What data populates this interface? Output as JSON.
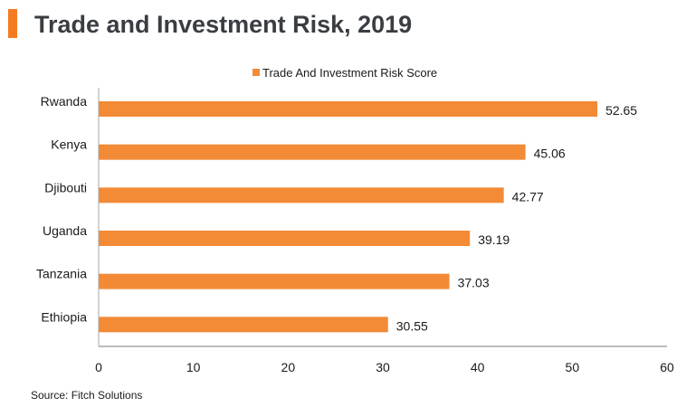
{
  "header": {
    "title": "Trade and Investment Risk, 2019"
  },
  "footer": {
    "source": "Source: Fitch Solutions"
  },
  "colors": {
    "accent": "#f47b20",
    "bar": "#f28a36",
    "axis": "#a6a6a6",
    "text": "#1a1a1a"
  },
  "chart_data": {
    "type": "bar",
    "orientation": "horizontal",
    "title": "Trade and Investment Risk, 2019",
    "categories": [
      "Rwanda",
      "Kenya",
      "Djibouti",
      "Uganda",
      "Tanzania",
      "Ethiopia"
    ],
    "series": [
      {
        "name": "Trade And Investment Risk Score",
        "values": [
          52.65,
          45.06,
          42.77,
          39.19,
          37.03,
          30.55
        ],
        "labels": [
          "52.65",
          "45.06",
          "42.77",
          "39.19",
          "37.03",
          "30.55"
        ]
      }
    ],
    "xlabel": "",
    "ylabel": "",
    "xlim": [
      0,
      60
    ],
    "xticks": [
      0,
      10,
      20,
      30,
      40,
      50,
      60
    ],
    "xtick_labels": [
      "0",
      "10",
      "20",
      "30",
      "40",
      "50",
      "60"
    ],
    "grid": false,
    "legend_position": "top-center",
    "source": "Source: Fitch Solutions"
  }
}
